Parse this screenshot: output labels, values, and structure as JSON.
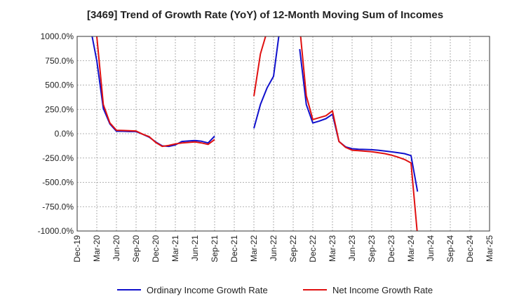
{
  "chart_data": {
    "type": "line",
    "title": "[3469]  Trend of Growth Rate (YoY) of 12-Month Moving Sum of Incomes",
    "xlabel": "",
    "ylabel": "",
    "ylim": [
      -1000,
      1000
    ],
    "yticks": [
      "1000.0%",
      "750.0%",
      "500.0%",
      "250.0%",
      "0.0%",
      "-250.0%",
      "-500.0%",
      "-750.0%",
      "-1000.0%"
    ],
    "xticks": [
      "Dec-19",
      "Mar-20",
      "Jun-20",
      "Sep-20",
      "Dec-20",
      "Mar-21",
      "Jun-21",
      "Sep-21",
      "Dec-21",
      "Mar-22",
      "Jun-22",
      "Sep-22",
      "Dec-22",
      "Mar-23",
      "Jun-23",
      "Sep-23",
      "Dec-23",
      "Mar-24",
      "Jun-24",
      "Sep-24",
      "Dec-24",
      "Mar-25"
    ],
    "grid": true,
    "legend": "bottom",
    "series": [
      {
        "name": "Ordinary Income Growth Rate",
        "color": "#1010cc",
        "points": [
          [
            "2020-02",
            1100
          ],
          [
            "2020-03",
            750
          ],
          [
            "2020-04",
            260
          ],
          [
            "2020-05",
            100
          ],
          [
            "2020-06",
            25
          ],
          [
            "2020-07",
            25
          ],
          [
            "2020-08",
            22
          ],
          [
            "2020-09",
            22
          ],
          [
            "2020-10",
            -5
          ],
          [
            "2020-11",
            -35
          ],
          [
            "2020-12",
            -85
          ],
          [
            "2021-01",
            -125
          ],
          [
            "2021-02",
            -130
          ],
          [
            "2021-03",
            -115
          ],
          [
            "2021-04",
            -80
          ],
          [
            "2021-05",
            -75
          ],
          [
            "2021-06",
            -70
          ],
          [
            "2021-07",
            -78
          ],
          [
            "2021-08",
            -95
          ],
          [
            "2021-09",
            -25
          ],
          null,
          [
            "2022-03",
            55
          ],
          [
            "2022-04",
            300
          ],
          [
            "2022-05",
            470
          ],
          [
            "2022-06",
            590
          ],
          [
            "2022-07",
            1100
          ],
          null,
          [
            "2022-10",
            870
          ],
          [
            "2022-11",
            300
          ],
          [
            "2022-12",
            110
          ],
          [
            "2023-01",
            130
          ],
          [
            "2023-02",
            155
          ],
          [
            "2023-03",
            200
          ],
          [
            "2023-04",
            -80
          ],
          [
            "2023-05",
            -135
          ],
          [
            "2023-06",
            -155
          ],
          [
            "2023-07",
            -160
          ],
          [
            "2023-08",
            -162
          ],
          [
            "2023-09",
            -165
          ],
          [
            "2023-10",
            -170
          ],
          [
            "2023-11",
            -178
          ],
          [
            "2023-12",
            -186
          ],
          [
            "2024-01",
            -195
          ],
          [
            "2024-02",
            -205
          ],
          [
            "2024-03",
            -225
          ],
          [
            "2024-04",
            -595
          ]
        ]
      },
      {
        "name": "Net Income Growth Rate",
        "color": "#e01010",
        "points": [
          [
            "2020-02",
            1100
          ],
          [
            "2020-03",
            1000
          ],
          [
            "2020-04",
            300
          ],
          [
            "2020-05",
            110
          ],
          [
            "2020-06",
            35
          ],
          [
            "2020-07",
            33
          ],
          [
            "2020-08",
            30
          ],
          [
            "2020-09",
            28
          ],
          [
            "2020-10",
            -5
          ],
          [
            "2020-11",
            -30
          ],
          [
            "2020-12",
            -90
          ],
          [
            "2021-01",
            -130
          ],
          [
            "2021-02",
            -120
          ],
          [
            "2021-03",
            -105
          ],
          [
            "2021-04",
            -95
          ],
          [
            "2021-05",
            -90
          ],
          [
            "2021-06",
            -85
          ],
          [
            "2021-07",
            -95
          ],
          [
            "2021-08",
            -110
          ],
          [
            "2021-09",
            -60
          ],
          null,
          [
            "2022-03",
            385
          ],
          [
            "2022-04",
            820
          ],
          [
            "2022-05",
            1050
          ],
          null,
          [
            "2022-10",
            1100
          ],
          [
            "2022-11",
            390
          ],
          [
            "2022-12",
            145
          ],
          [
            "2023-01",
            165
          ],
          [
            "2023-02",
            185
          ],
          [
            "2023-03",
            235
          ],
          [
            "2023-04",
            -80
          ],
          [
            "2023-05",
            -140
          ],
          [
            "2023-06",
            -170
          ],
          [
            "2023-07",
            -175
          ],
          [
            "2023-08",
            -180
          ],
          [
            "2023-09",
            -185
          ],
          [
            "2023-10",
            -195
          ],
          [
            "2023-11",
            -205
          ],
          [
            "2023-12",
            -220
          ],
          [
            "2024-01",
            -240
          ],
          [
            "2024-02",
            -265
          ],
          [
            "2024-03",
            -300
          ],
          [
            "2024-04",
            -1050
          ]
        ]
      }
    ]
  }
}
